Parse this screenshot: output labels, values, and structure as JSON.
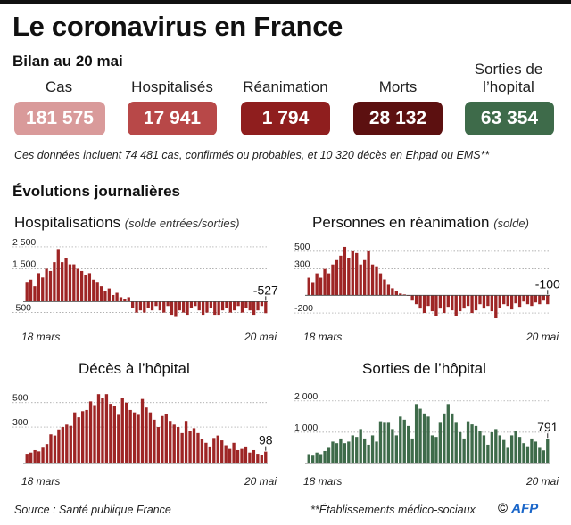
{
  "title": "Le coronavirus en France",
  "subtitle": "Bilan au 20 mai",
  "stats": [
    {
      "label": "Cas",
      "value": "181 575",
      "color": "#d99a9a"
    },
    {
      "label": "Hospitalisés",
      "value": "17 941",
      "color": "#b84848"
    },
    {
      "label": "Réanimation",
      "value": "1 794",
      "color": "#8f1e1e"
    },
    {
      "label": "Morts",
      "value": "28 132",
      "color": "#5c1010"
    },
    {
      "label": "Sorties de l’hopital",
      "value": "63 354",
      "color": "#3e6b4a"
    }
  ],
  "note": "Ces données incluent 74 481 cas, confirmés ou probables, et 10 320 décès en Ehpad ou EMS**",
  "section_title": "Évolutions journalières",
  "footer": {
    "source": "Source : Santé publique France",
    "footnote": "**Établissements médico-sociaux",
    "copyright": "©",
    "agency": "AFP"
  },
  "chart_data": [
    {
      "type": "bar",
      "title": "Hospitalisations",
      "subtitle": "(solde entrées/sorties)",
      "color": "#9e2525",
      "x_start_label": "18 mars",
      "x_end_label": "20 mai",
      "yticks": [
        "2 500",
        "1 500",
        "-500"
      ],
      "ytick_values": [
        2500,
        1500,
        -500
      ],
      "ylim": [
        -800,
        2700
      ],
      "last_value_label": "-527",
      "values": [
        900,
        1000,
        700,
        1300,
        1100,
        1500,
        1400,
        1800,
        2400,
        1800,
        2000,
        1700,
        1700,
        1500,
        1400,
        1200,
        1300,
        1000,
        900,
        700,
        500,
        600,
        300,
        400,
        200,
        100,
        200,
        -300,
        -500,
        -400,
        -500,
        -300,
        -400,
        -200,
        -400,
        -500,
        -200,
        -600,
        -700,
        -400,
        -500,
        -600,
        -300,
        -200,
        -400,
        -600,
        -500,
        -300,
        -600,
        -600,
        -400,
        -300,
        -500,
        -400,
        -200,
        -500,
        -300,
        -400,
        -600,
        -400,
        -200,
        -527
      ]
    },
    {
      "type": "bar",
      "title": "Personnes en réanimation",
      "subtitle": "(solde)",
      "color": "#9e2525",
      "x_start_label": "18 mars",
      "x_end_label": "20 mai",
      "yticks": [
        "500",
        "300",
        "-200"
      ],
      "ytick_values": [
        500,
        300,
        -200
      ],
      "ylim": [
        -270,
        600
      ],
      "last_value_label": "-100",
      "values": [
        200,
        150,
        250,
        200,
        300,
        250,
        350,
        400,
        450,
        550,
        420,
        500,
        480,
        350,
        400,
        500,
        350,
        330,
        250,
        180,
        120,
        80,
        50,
        20,
        10,
        0,
        -60,
        -100,
        -150,
        -200,
        -120,
        -180,
        -230,
        -150,
        -200,
        -130,
        -170,
        -230,
        -180,
        -150,
        -120,
        -200,
        -170,
        -100,
        -150,
        -120,
        -180,
        -260,
        -140,
        -100,
        -120,
        -160,
        -90,
        -130,
        -70,
        -100,
        -120,
        -80,
        -100,
        -60,
        -100
      ]
    },
    {
      "type": "bar",
      "title": "Décès à l’hôpital",
      "subtitle": "",
      "color": "#9e2525",
      "x_start_label": "18 mars",
      "x_end_label": "20 mai",
      "yticks": [
        "500",
        "300"
      ],
      "ytick_values": [
        500,
        300
      ],
      "ylim": [
        0,
        630
      ],
      "last_value_label": "98",
      "values": [
        80,
        90,
        110,
        100,
        130,
        160,
        240,
        230,
        280,
        300,
        320,
        310,
        420,
        380,
        430,
        440,
        510,
        480,
        570,
        540,
        570,
        490,
        470,
        400,
        540,
        500,
        440,
        420,
        400,
        530,
        460,
        420,
        360,
        300,
        390,
        410,
        350,
        320,
        300,
        250,
        350,
        270,
        290,
        250,
        200,
        170,
        140,
        210,
        230,
        190,
        150,
        120,
        170,
        110,
        120,
        140,
        90,
        110,
        80,
        70,
        98
      ]
    },
    {
      "type": "bar",
      "title": "Sorties de l’hôpital",
      "subtitle": "",
      "color": "#3e6b4a",
      "x_start_label": "18 mars",
      "x_end_label": "20 mai",
      "yticks": [
        "2 000",
        "1 000"
      ],
      "ytick_values": [
        2000,
        1000
      ],
      "ylim": [
        0,
        2450
      ],
      "last_value_label": "791",
      "values": [
        300,
        250,
        350,
        300,
        400,
        500,
        700,
        650,
        800,
        650,
        700,
        900,
        850,
        1100,
        800,
        600,
        900,
        700,
        1350,
        1300,
        1300,
        1100,
        900,
        1500,
        1400,
        1200,
        800,
        1900,
        1750,
        1600,
        1500,
        900,
        850,
        1300,
        1600,
        1900,
        1600,
        1300,
        1000,
        800,
        1350,
        1250,
        1200,
        1050,
        900,
        600,
        1000,
        1100,
        900,
        750,
        500,
        900,
        1050,
        850,
        650,
        550,
        800,
        700,
        500,
        420,
        791
      ]
    }
  ]
}
